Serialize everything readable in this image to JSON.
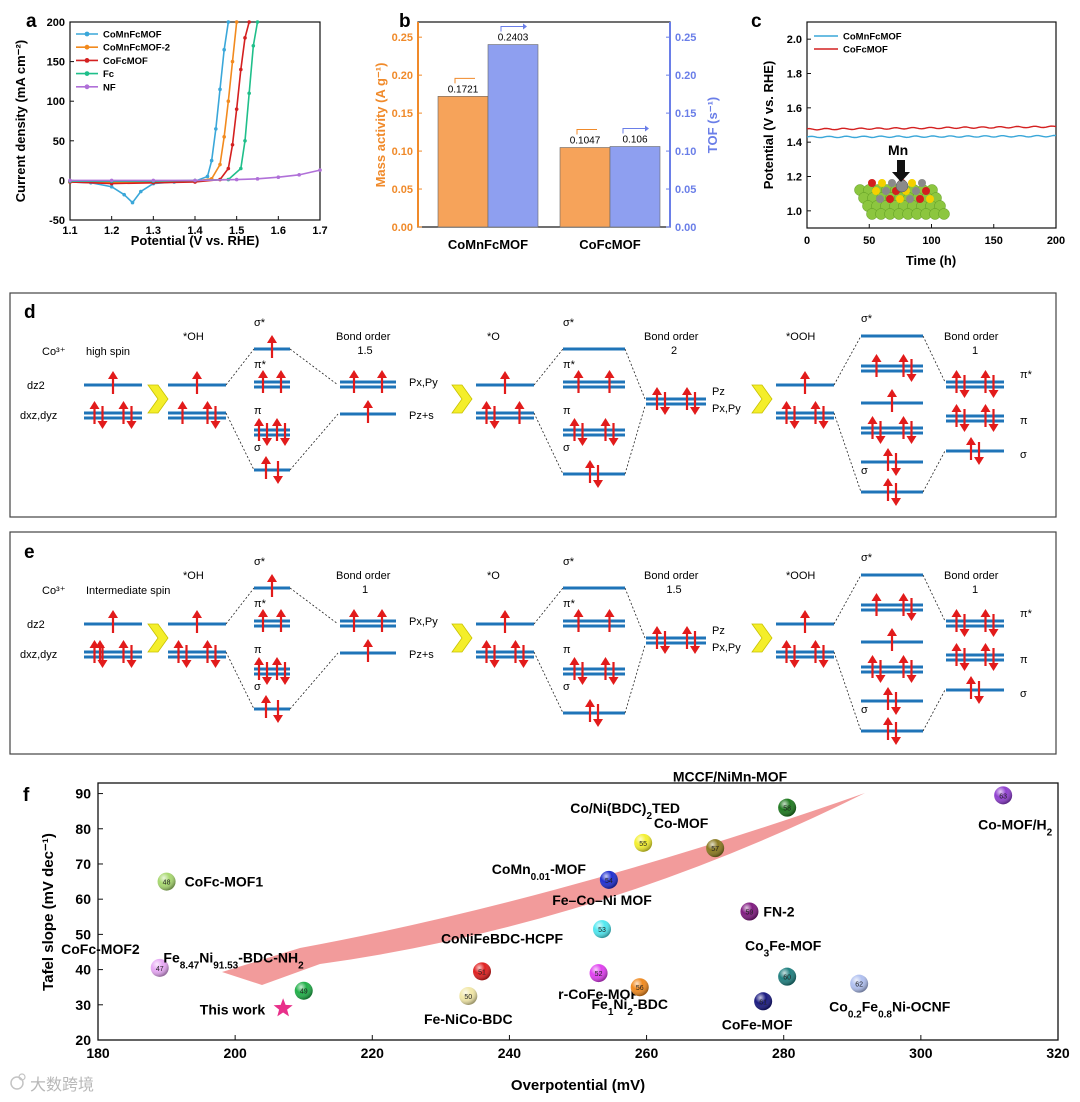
{
  "panel_letters": [
    "a",
    "b",
    "c",
    "d",
    "e",
    "f"
  ],
  "watermark": "大数跨境",
  "colors": {
    "comnfcmof": "#3aa7d9",
    "comnfcmof2": "#f28a1e",
    "cofcmof": "#d42020",
    "fc": "#1fbf8a",
    "nf": "#b070d8",
    "bar_orange": "#f6a35a",
    "bar_blue": "#8e9ff0",
    "level": "#1f74b8",
    "arrow": "#e21b1b",
    "chevron": "#f4ee2a",
    "pink_arrow": "#f08a8a"
  },
  "chart_data": [
    {
      "id": "a",
      "type": "line",
      "xlabel": "Potential (V vs. RHE)",
      "ylabel": "Current density (mA cm⁻²)",
      "xlim": [
        1.1,
        1.7
      ],
      "ylim": [
        -50,
        200
      ],
      "xticks": [
        "1.1",
        "1.2",
        "1.3",
        "1.4",
        "1.5",
        "1.6",
        "1.7"
      ],
      "yticks": [
        "-50",
        "0",
        "50",
        "100",
        "150",
        "200"
      ],
      "legend_position": "top-left",
      "series": [
        {
          "name": "CoMnFcMOF",
          "color": "#3aa7d9",
          "x": [
            1.1,
            1.15,
            1.2,
            1.23,
            1.25,
            1.27,
            1.3,
            1.35,
            1.4,
            1.43,
            1.44,
            1.45,
            1.46,
            1.47,
            1.48
          ],
          "y": [
            -2,
            -3,
            -8,
            -18,
            -28,
            -14,
            -4,
            -2,
            -1,
            5,
            25,
            65,
            115,
            165,
            200
          ]
        },
        {
          "name": "CoMnFcMOF-2",
          "color": "#f28a1e",
          "x": [
            1.1,
            1.2,
            1.3,
            1.4,
            1.44,
            1.46,
            1.47,
            1.48,
            1.49,
            1.5
          ],
          "y": [
            -2,
            -3,
            -2,
            -1,
            2,
            20,
            55,
            100,
            150,
            200
          ]
        },
        {
          "name": "CoFcMOF",
          "color": "#d42020",
          "x": [
            1.1,
            1.2,
            1.3,
            1.4,
            1.46,
            1.48,
            1.49,
            1.5,
            1.51,
            1.52,
            1.53
          ],
          "y": [
            -2,
            -4,
            -3,
            -2,
            1,
            15,
            45,
            90,
            140,
            180,
            200
          ]
        },
        {
          "name": "Fc",
          "color": "#1fbf8a",
          "x": [
            1.1,
            1.2,
            1.3,
            1.4,
            1.48,
            1.51,
            1.52,
            1.53,
            1.54,
            1.55
          ],
          "y": [
            -1,
            -1,
            -1,
            0,
            1,
            15,
            50,
            110,
            170,
            200
          ]
        },
        {
          "name": "NF",
          "color": "#b070d8",
          "x": [
            1.1,
            1.2,
            1.3,
            1.4,
            1.5,
            1.55,
            1.6,
            1.65,
            1.7
          ],
          "y": [
            0,
            0,
            0,
            0,
            1,
            2,
            4,
            7,
            13
          ]
        }
      ]
    },
    {
      "id": "b",
      "type": "bar",
      "categories": [
        "CoMnFcMOF",
        "CoFcMOF"
      ],
      "ylabel": "Mass activity (A g⁻¹)",
      "ylabel_right": "TOF (s⁻¹)",
      "ylim": [
        0,
        0.27
      ],
      "yticks": [
        "0.00",
        "0.05",
        "0.10",
        "0.15",
        "0.20",
        "0.25"
      ],
      "series": [
        {
          "name": "Mass activity",
          "axis": "left",
          "color": "#f6a35a",
          "values": [
            0.1721,
            0.1047
          ],
          "labels": [
            "0.1721",
            "0.1047"
          ]
        },
        {
          "name": "TOF",
          "axis": "right",
          "color": "#8e9ff0",
          "values": [
            0.2403,
            0.106
          ],
          "labels": [
            "0.2403",
            "0.106"
          ]
        }
      ]
    },
    {
      "id": "c",
      "type": "line",
      "xlabel": "Time (h)",
      "ylabel": "Potential (V vs. RHE)",
      "xlim": [
        0,
        200
      ],
      "ylim": [
        0.9,
        2.1
      ],
      "xticks": [
        "0",
        "50",
        "100",
        "150",
        "200"
      ],
      "yticks": [
        "1.0",
        "1.2",
        "1.4",
        "1.6",
        "1.8",
        "2.0"
      ],
      "legend_position": "top-left",
      "inset_label": "Mn",
      "series": [
        {
          "name": "CoMnFcMOF",
          "color": "#3aa7d9",
          "x": [
            0,
            50,
            100,
            150,
            200
          ],
          "y": [
            1.43,
            1.43,
            1.43,
            1.43,
            1.435
          ]
        },
        {
          "name": "CoFcMOF",
          "color": "#d42020",
          "x": [
            0,
            50,
            100,
            150,
            200
          ],
          "y": [
            1.475,
            1.48,
            1.48,
            1.485,
            1.49
          ]
        }
      ]
    },
    {
      "id": "f",
      "type": "scatter",
      "xlabel": "Overpotential (mV)",
      "ylabel": "Tafel slope (mV dec⁻¹)",
      "xlim": [
        180,
        320
      ],
      "ylim": [
        20,
        93
      ],
      "xticks": [
        "180",
        "200",
        "220",
        "240",
        "260",
        "280",
        "300",
        "320"
      ],
      "yticks": [
        "20",
        "30",
        "40",
        "50",
        "60",
        "70",
        "80",
        "90"
      ],
      "points": [
        {
          "x": 190,
          "y": 65,
          "ref": "48",
          "label": "CoFc-MOF1",
          "color": "#a8d870"
        },
        {
          "x": 189,
          "y": 40.5,
          "ref": "47",
          "label": "CoFc-MOF2",
          "color": "#e7a8f4"
        },
        {
          "x": 210,
          "y": 34,
          "ref": "49",
          "label": "Fe8.47Ni91.53-BDC-NH2",
          "color": "#22b04a"
        },
        {
          "x": 234,
          "y": 32.5,
          "ref": "50",
          "label": "Fe-NiCo-BDC",
          "color": "#f2e8a8"
        },
        {
          "x": 236,
          "y": 39.5,
          "ref": "51",
          "label": "CoNiFeBDC-HCPF",
          "color": "#e02020"
        },
        {
          "x": 253,
          "y": 39,
          "ref": "52",
          "label": "r-CoFe-MOF",
          "color": "#e040f0"
        },
        {
          "x": 253.5,
          "y": 51.5,
          "ref": "53",
          "label": "Fe–Co–Ni MOF",
          "color": "#50e8f0"
        },
        {
          "x": 254.5,
          "y": 65.5,
          "ref": "54",
          "label": "CoMn0.01-MOF",
          "color": "#2030d0"
        },
        {
          "x": 259.5,
          "y": 76,
          "ref": "55",
          "label": "Co/Ni(BDC)2TED",
          "color": "#f4f030"
        },
        {
          "x": 259,
          "y": 35,
          "ref": "56",
          "label": "Fe1Ni2-BDC",
          "color": "#f08a20"
        },
        {
          "x": 270,
          "y": 74.5,
          "ref": "57",
          "label": "Co-MOF",
          "color": "#8a7a20"
        },
        {
          "x": 280.5,
          "y": 86,
          "ref": "58",
          "label": "MCCF/NiMn-MOF",
          "color": "#207a20"
        },
        {
          "x": 275,
          "y": 56.5,
          "ref": "59",
          "label": "FN-2",
          "color": "#801a80"
        },
        {
          "x": 280.5,
          "y": 38,
          "ref": "60",
          "label": "Co3Fe-MOF",
          "color": "#208080"
        },
        {
          "x": 277,
          "y": 31,
          "ref": "61",
          "label": "CoFe-MOF",
          "color": "#1a1a80"
        },
        {
          "x": 291,
          "y": 36,
          "ref": "62",
          "label": "Co0.2Fe0.8Ni-OCNF",
          "color": "#b0c0f0"
        },
        {
          "x": 312,
          "y": 89.5,
          "ref": "63",
          "label": "Co-MOF/H2",
          "color": "#9040d0"
        },
        {
          "x": 207,
          "y": 29,
          "ref": "",
          "label": "This work",
          "color": "#e8308a",
          "marker": "star"
        }
      ]
    }
  ],
  "panel_d": {
    "start": [
      "Co³⁺",
      "high spin"
    ],
    "orbital_labels": [
      "dz2",
      "dxz,dyz"
    ],
    "intermediates": [
      "*OH",
      "*O",
      "*OOH"
    ],
    "bond_order_title": "Bond order",
    "bond_orders": [
      "1.5",
      "2",
      "1"
    ],
    "mo_labels": [
      "σ*",
      "π*",
      "π",
      "σ"
    ],
    "p_labels_1": [
      "Px,Py",
      "Pz+s"
    ],
    "p_labels_2": [
      "Pz",
      "Px,Py"
    ],
    "right_labels": [
      "π*",
      "π",
      "σ"
    ]
  },
  "panel_e": {
    "start": [
      "Co³⁺",
      "Intermediate spin"
    ],
    "orbital_labels": [
      "dz2",
      "dxz,dyz"
    ],
    "intermediates": [
      "*OH",
      "*O",
      "*OOH"
    ],
    "bond_order_title": "Bond order",
    "bond_orders": [
      "1",
      "1.5",
      "1"
    ],
    "mo_labels": [
      "σ*",
      "π*",
      "π",
      "σ"
    ],
    "p_labels_1": [
      "Px,Py",
      "Pz+s"
    ],
    "p_labels_2": [
      "Pz",
      "Px,Py"
    ],
    "right_labels": [
      "π*",
      "π",
      "σ"
    ]
  }
}
